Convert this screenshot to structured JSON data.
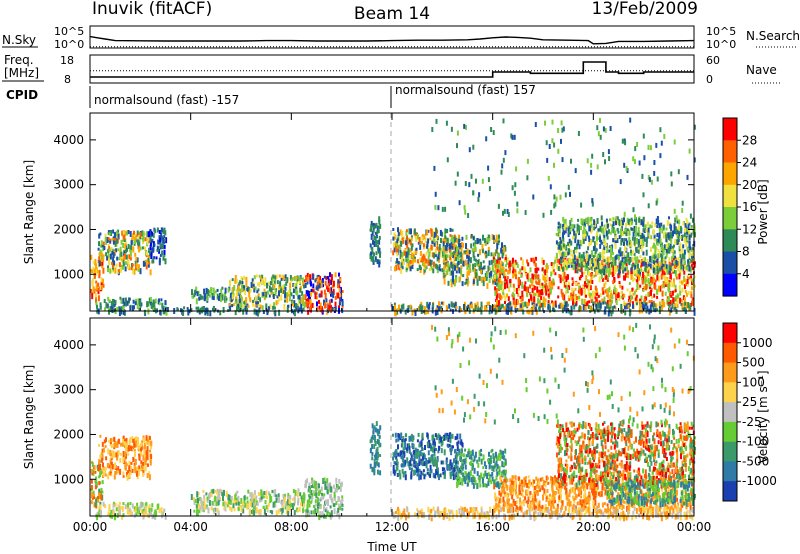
{
  "header": {
    "station": "Inuvik (fitACF)",
    "beam": "Beam 14",
    "date": "13/Feb/2009"
  },
  "top_panels": {
    "nsky_label": "N.Sky",
    "nsky_ticks": [
      "10^5",
      "10^0"
    ],
    "nsearch_label": "N.Search",
    "nsearch_ticks": [
      "10^5",
      "10^0"
    ],
    "freq_label": "Freq.",
    "freq_unit": "[MHz]",
    "freq_ticks": [
      "18",
      "8"
    ],
    "nave_label": "Nave",
    "nave_ticks": [
      "60",
      "0"
    ],
    "cpid_label": "CPID",
    "cpid_segments": [
      {
        "label": "normalsound (fast) -157",
        "start_h": 0,
        "end_h": 12
      },
      {
        "label": "normalsound (fast) 157",
        "start_h": 12,
        "end_h": 24
      }
    ]
  },
  "chart_data": [
    {
      "type": "line",
      "name": "nsky-nsearch-panel",
      "xlim": [
        0,
        24
      ],
      "ylim": [
        0,
        5
      ],
      "yscale": "log",
      "series": [
        {
          "name": "N.Sky",
          "style": "solid",
          "x": [
            0,
            0.3,
            0.6,
            1,
            2,
            3,
            4,
            5,
            6,
            7,
            8,
            9,
            10,
            11,
            12,
            13,
            14,
            15,
            15.5,
            16,
            16.5,
            17,
            17.5,
            18,
            19,
            19.8,
            20,
            20.5,
            21,
            22,
            23,
            24
          ],
          "y": [
            2.6,
            2.3,
            2.0,
            1.6,
            1.55,
            1.5,
            1.5,
            1.5,
            1.5,
            1.6,
            1.6,
            1.5,
            1.5,
            1.5,
            1.6,
            1.7,
            1.7,
            1.8,
            2.0,
            2.3,
            2.5,
            2.4,
            2.2,
            1.8,
            1.7,
            1.6,
            0.8,
            0.9,
            1.4,
            1.4,
            1.5,
            1.6
          ]
        },
        {
          "name": "N.Search",
          "style": "dotted",
          "x": [
            0,
            24
          ],
          "y": [
            0.05,
            0.05
          ]
        }
      ]
    },
    {
      "type": "line",
      "name": "freq-nave-panel",
      "xlim": [
        0,
        24
      ],
      "ylim": [
        8,
        18
      ],
      "series": [
        {
          "name": "Freq.",
          "style": "solid",
          "x": [
            0,
            15,
            15,
            16,
            16,
            17.5,
            17.5,
            19.6,
            19.6,
            20.5,
            20.5,
            21,
            21,
            22,
            22,
            23.4,
            23.4,
            24
          ],
          "y": [
            10,
            10,
            10,
            10,
            12,
            12,
            11.5,
            11.5,
            16,
            16,
            12,
            12,
            11.5,
            11.5,
            12,
            12,
            12,
            12
          ]
        },
        {
          "name": "Nave",
          "style": "dotted",
          "x": [
            0,
            24
          ],
          "y": [
            12.5,
            12.5
          ]
        }
      ]
    },
    {
      "type": "heatmap",
      "name": "power-panel",
      "ylabel": "Slant Range [km]",
      "xlabel": "",
      "xlim": [
        0,
        24
      ],
      "ylim": [
        180,
        4600
      ],
      "x_ticks": [
        "00:00",
        "04:00",
        "08:00",
        "12:00",
        "16:00",
        "20:00",
        "00:00"
      ],
      "y_ticks": [
        1000,
        2000,
        3000,
        4000
      ],
      "colorbar": {
        "label": "Power [dB]",
        "ticks": [
          "4",
          "8",
          "12",
          "16",
          "20",
          "24",
          "28"
        ],
        "colors": [
          "#0000ff",
          "#1a4fa8",
          "#2e8b57",
          "#7ccd3a",
          "#f0e040",
          "#ffa500",
          "#ff6000",
          "#ff0000"
        ]
      },
      "regions": [
        {
          "t0": 0.0,
          "t1": 0.5,
          "r0": 450,
          "r1": 1450,
          "colors": [
            "#ff0000",
            "#ff6000",
            "#ffa500",
            "#f0e040"
          ]
        },
        {
          "t0": 0.3,
          "t1": 2.4,
          "r0": 1100,
          "r1": 2000,
          "colors": [
            "#ff6000",
            "#ffa500",
            "#f0e040",
            "#7ccd3a",
            "#2e8b57",
            "#1a4fa8"
          ]
        },
        {
          "t0": 2.3,
          "t1": 3.0,
          "r0": 1300,
          "r1": 2050,
          "colors": [
            "#1a4fa8",
            "#2e8b57",
            "#0000ff"
          ]
        },
        {
          "t0": 0.2,
          "t1": 3.0,
          "r0": 200,
          "r1": 500,
          "colors": [
            "#2e8b57",
            "#1a4fa8",
            "#7ccd3a"
          ]
        },
        {
          "t0": 4.0,
          "t1": 5.5,
          "r0": 450,
          "r1": 750,
          "colors": [
            "#2e8b57",
            "#1a4fa8",
            "#7ccd3a"
          ]
        },
        {
          "t0": 5.5,
          "t1": 8.5,
          "r0": 300,
          "r1": 1000,
          "colors": [
            "#f0e040",
            "#7ccd3a",
            "#2e8b57",
            "#1a4fa8",
            "#ffa500"
          ]
        },
        {
          "t0": 8.5,
          "t1": 10.0,
          "r0": 200,
          "r1": 1050,
          "colors": [
            "#1a4fa8",
            "#0000ff",
            "#ff6000",
            "#ff0000",
            "#ffa500"
          ]
        },
        {
          "t0": 2.5,
          "t1": 8.5,
          "r0": 190,
          "r1": 300,
          "colors": [
            "#1a4fa8",
            "#2e8b57"
          ]
        },
        {
          "t0": 11.1,
          "t1": 11.5,
          "r0": 1200,
          "r1": 2300,
          "colors": [
            "#2e8b57",
            "#1a4fa8"
          ]
        },
        {
          "t0": 12.0,
          "t1": 14.5,
          "r0": 1100,
          "r1": 2050,
          "colors": [
            "#ff6000",
            "#ffa500",
            "#f0e040",
            "#7ccd3a",
            "#2e8b57",
            "#1a4fa8"
          ]
        },
        {
          "t0": 14.0,
          "t1": 16.5,
          "r0": 800,
          "r1": 1900,
          "colors": [
            "#2e8b57",
            "#7ccd3a",
            "#1a4fa8",
            "#ffa500"
          ]
        },
        {
          "t0": 16.0,
          "t1": 24.0,
          "r0": 350,
          "r1": 1400,
          "colors": [
            "#ff0000",
            "#ff6000",
            "#ffa500",
            "#ff0000",
            "#f0e040",
            "#7ccd3a"
          ]
        },
        {
          "t0": 18.5,
          "t1": 24.0,
          "r0": 1100,
          "r1": 2300,
          "colors": [
            "#2e8b57",
            "#7ccd3a",
            "#1a4fa8",
            "#f0e040"
          ]
        },
        {
          "t0": 12.0,
          "t1": 24.0,
          "r0": 190,
          "r1": 400,
          "colors": [
            "#1a4fa8",
            "#2e8b57",
            "#ffa500"
          ]
        },
        {
          "t0": 13.5,
          "t1": 24.0,
          "r0": 2300,
          "r1": 4500,
          "colors": [
            "#2e8b57",
            "#7ccd3a",
            "#1a4fa8"
          ],
          "sparse": true
        }
      ]
    },
    {
      "type": "heatmap",
      "name": "velocity-panel",
      "ylabel": "Slant Range [km]",
      "xlabel": "Time UT",
      "xlim": [
        0,
        24
      ],
      "ylim": [
        180,
        4600
      ],
      "x_ticks": [
        "00:00",
        "04:00",
        "08:00",
        "12:00",
        "16:00",
        "20:00",
        "00:00"
      ],
      "y_ticks": [
        1000,
        2000,
        3000,
        4000
      ],
      "colorbar": {
        "label": "Velocity [m s⁻¹]",
        "ticks": [
          "1000",
          "500",
          "100",
          "25",
          "-25",
          "-100",
          "-500",
          "-1000"
        ],
        "colors": [
          "#1a3fb0",
          "#2e7ba8",
          "#3a9a6a",
          "#66cc33",
          "#c0c0c0",
          "#ffd24d",
          "#ff9a1a",
          "#ff5a00",
          "#ff0000"
        ]
      },
      "regions": [
        {
          "t0": 0.0,
          "t1": 0.5,
          "r0": 450,
          "r1": 1450,
          "colors": [
            "#ff9a1a",
            "#ff5a00",
            "#66cc33",
            "#3a9a6a"
          ]
        },
        {
          "t0": 0.3,
          "t1": 2.4,
          "r0": 1100,
          "r1": 2000,
          "colors": [
            "#ff9a1a",
            "#ffd24d",
            "#ff5a00"
          ]
        },
        {
          "t0": 0.2,
          "t1": 3.0,
          "r0": 200,
          "r1": 500,
          "colors": [
            "#c0c0c0",
            "#66cc33",
            "#ffd24d"
          ]
        },
        {
          "t0": 4.0,
          "t1": 8.5,
          "r0": 300,
          "r1": 800,
          "colors": [
            "#66cc33",
            "#3a9a6a",
            "#c0c0c0",
            "#ffd24d"
          ]
        },
        {
          "t0": 8.5,
          "t1": 10.0,
          "r0": 200,
          "r1": 1050,
          "colors": [
            "#3a9a6a",
            "#66cc33",
            "#c0c0c0"
          ]
        },
        {
          "t0": 11.1,
          "t1": 11.5,
          "r0": 1200,
          "r1": 2300,
          "colors": [
            "#3a9a6a",
            "#2e7ba8"
          ]
        },
        {
          "t0": 12.0,
          "t1": 14.8,
          "r0": 1100,
          "r1": 2050,
          "colors": [
            "#1a3fb0",
            "#2e7ba8",
            "#3a9a6a"
          ]
        },
        {
          "t0": 14.5,
          "t1": 16.5,
          "r0": 900,
          "r1": 1700,
          "colors": [
            "#3a9a6a",
            "#2e7ba8",
            "#66cc33"
          ]
        },
        {
          "t0": 16.0,
          "t1": 24.0,
          "r0": 350,
          "r1": 1100,
          "colors": [
            "#ff9a1a",
            "#ffd24d",
            "#ff5a00",
            "#ff9a1a"
          ]
        },
        {
          "t0": 18.5,
          "t1": 24.0,
          "r0": 900,
          "r1": 2300,
          "colors": [
            "#ff5a00",
            "#ff0000",
            "#ff9a1a",
            "#3a9a6a",
            "#66cc33"
          ]
        },
        {
          "t0": 20.5,
          "t1": 24.0,
          "r0": 500,
          "r1": 1000,
          "colors": [
            "#3a9a6a",
            "#66cc33",
            "#2e7ba8"
          ]
        },
        {
          "t0": 12.0,
          "t1": 24.0,
          "r0": 190,
          "r1": 400,
          "colors": [
            "#ffd24d",
            "#ff9a1a",
            "#c0c0c0"
          ]
        },
        {
          "t0": 13.5,
          "t1": 24.0,
          "r0": 2300,
          "r1": 4500,
          "colors": [
            "#3a9a6a",
            "#ff9a1a",
            "#66cc33"
          ],
          "sparse": true
        }
      ]
    }
  ]
}
